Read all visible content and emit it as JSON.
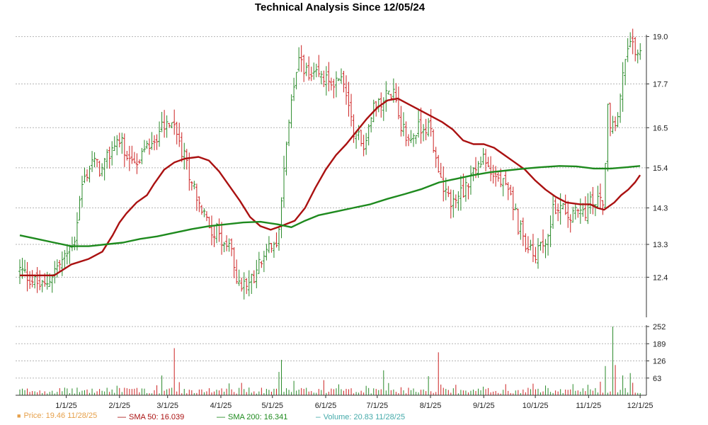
{
  "chart_data": {
    "type": "ohlc",
    "title": "Technical Analysis Since 12/05/24",
    "price_panel": {
      "y_ticks": [
        12.4,
        13.3,
        14.3,
        15.4,
        16.5,
        17.7,
        19.0
      ],
      "y_tick_labels": [
        "12.4",
        "13.3",
        "14.3",
        "15.4",
        "16.5",
        "17.7",
        "19.0"
      ],
      "ylim": [
        11.3,
        19.05
      ],
      "grid": true
    },
    "volume_panel": {
      "y_ticks": [
        63,
        126,
        189,
        252
      ],
      "y_tick_labels": [
        "63",
        "126",
        "189",
        "252"
      ],
      "ylim": [
        0,
        252
      ],
      "grid": true
    },
    "x_tick_labels": [
      "1/1/25",
      "2/1/25",
      "3/1/25",
      "4/1/25",
      "5/1/25",
      "6/1/25",
      "7/1/25",
      "8/1/25",
      "9/1/25",
      "10/1/25",
      "11/1/25",
      "12/1/25"
    ],
    "x_tick_days": [
      27,
      58,
      86,
      117,
      147,
      178,
      208,
      239,
      270,
      300,
      331,
      361
    ],
    "x_range_days": [
      0,
      363
    ],
    "price_keypoints": [
      [
        0,
        12.6
      ],
      [
        8,
        12.3
      ],
      [
        14,
        12.1
      ],
      [
        20,
        12.6
      ],
      [
        26,
        12.9
      ],
      [
        32,
        13.5
      ],
      [
        36,
        14.9
      ],
      [
        42,
        15.6
      ],
      [
        48,
        15.3
      ],
      [
        56,
        16.2
      ],
      [
        62,
        15.9
      ],
      [
        68,
        15.4
      ],
      [
        76,
        16.1
      ],
      [
        82,
        16.4
      ],
      [
        88,
        16.7
      ],
      [
        94,
        15.9
      ],
      [
        100,
        15.1
      ],
      [
        106,
        14.2
      ],
      [
        110,
        13.8
      ],
      [
        116,
        13.6
      ],
      [
        120,
        13.3
      ],
      [
        124,
        12.9
      ],
      [
        128,
        12.1
      ],
      [
        134,
        12.3
      ],
      [
        140,
        12.8
      ],
      [
        146,
        13.2
      ],
      [
        150,
        13.1
      ],
      [
        154,
        15.8
      ],
      [
        160,
        17.9
      ],
      [
        164,
        18.4
      ],
      [
        168,
        17.8
      ],
      [
        174,
        17.9
      ],
      [
        180,
        17.7
      ],
      [
        186,
        17.9
      ],
      [
        190,
        17.5
      ],
      [
        194,
        16.5
      ],
      [
        200,
        16.0
      ],
      [
        206,
        17.0
      ],
      [
        212,
        17.4
      ],
      [
        218,
        17.6
      ],
      [
        222,
        16.6
      ],
      [
        226,
        16.1
      ],
      [
        230,
        16.4
      ],
      [
        236,
        16.6
      ],
      [
        240,
        16.3
      ],
      [
        244,
        15.1
      ],
      [
        248,
        14.6
      ],
      [
        252,
        14.5
      ],
      [
        258,
        14.8
      ],
      [
        264,
        15.3
      ],
      [
        270,
        15.6
      ],
      [
        274,
        15.3
      ],
      [
        280,
        15.0
      ],
      [
        286,
        14.6
      ],
      [
        290,
        13.8
      ],
      [
        294,
        13.4
      ],
      [
        298,
        13.0
      ],
      [
        302,
        13.1
      ],
      [
        306,
        13.4
      ],
      [
        310,
        14.2
      ],
      [
        316,
        14.4
      ],
      [
        322,
        14.1
      ],
      [
        328,
        14.2
      ],
      [
        334,
        14.5
      ],
      [
        340,
        14.6
      ],
      [
        342,
        17.0
      ],
      [
        346,
        16.3
      ],
      [
        350,
        17.6
      ],
      [
        354,
        18.7
      ],
      [
        358,
        18.6
      ],
      [
        362,
        18.5
      ]
    ],
    "series": [
      {
        "name": "Price",
        "legend_text": "Price: 19.46  11/28/25",
        "color": "#e6a04a",
        "up_color": "#2a8a2a",
        "down_color": "#cc2222"
      },
      {
        "name": "SMA 50",
        "legend_text": "SMA 50: 16.039",
        "color": "#aa1111",
        "points": [
          [
            0,
            12.45
          ],
          [
            20,
            12.45
          ],
          [
            30,
            12.75
          ],
          [
            40,
            12.9
          ],
          [
            48,
            13.1
          ],
          [
            54,
            13.55
          ],
          [
            58,
            13.9
          ],
          [
            62,
            14.15
          ],
          [
            68,
            14.45
          ],
          [
            74,
            14.65
          ],
          [
            78,
            14.95
          ],
          [
            84,
            15.35
          ],
          [
            90,
            15.55
          ],
          [
            96,
            15.65
          ],
          [
            104,
            15.7
          ],
          [
            110,
            15.6
          ],
          [
            116,
            15.3
          ],
          [
            122,
            14.9
          ],
          [
            128,
            14.5
          ],
          [
            134,
            14.05
          ],
          [
            140,
            13.8
          ],
          [
            146,
            13.7
          ],
          [
            152,
            13.8
          ],
          [
            160,
            13.95
          ],
          [
            166,
            14.3
          ],
          [
            172,
            14.85
          ],
          [
            178,
            15.35
          ],
          [
            184,
            15.75
          ],
          [
            190,
            16.05
          ],
          [
            196,
            16.4
          ],
          [
            202,
            16.75
          ],
          [
            208,
            17.05
          ],
          [
            214,
            17.25
          ],
          [
            220,
            17.3
          ],
          [
            226,
            17.15
          ],
          [
            234,
            16.95
          ],
          [
            240,
            16.8
          ],
          [
            246,
            16.65
          ],
          [
            252,
            16.45
          ],
          [
            258,
            16.15
          ],
          [
            264,
            16.05
          ],
          [
            270,
            16.05
          ],
          [
            276,
            15.95
          ],
          [
            282,
            15.75
          ],
          [
            288,
            15.55
          ],
          [
            294,
            15.35
          ],
          [
            300,
            15.05
          ],
          [
            306,
            14.8
          ],
          [
            312,
            14.6
          ],
          [
            318,
            14.45
          ],
          [
            326,
            14.4
          ],
          [
            332,
            14.4
          ],
          [
            336,
            14.3
          ],
          [
            340,
            14.25
          ],
          [
            346,
            14.45
          ],
          [
            350,
            14.65
          ],
          [
            354,
            14.8
          ],
          [
            358,
            15.0
          ],
          [
            361,
            15.2
          ]
        ]
      },
      {
        "name": "SMA 200",
        "legend_text": "SMA 200: 16.341",
        "color": "#1e8a1e",
        "points": [
          [
            0,
            13.55
          ],
          [
            10,
            13.45
          ],
          [
            20,
            13.35
          ],
          [
            30,
            13.25
          ],
          [
            40,
            13.25
          ],
          [
            50,
            13.3
          ],
          [
            60,
            13.35
          ],
          [
            70,
            13.45
          ],
          [
            80,
            13.52
          ],
          [
            90,
            13.62
          ],
          [
            100,
            13.72
          ],
          [
            110,
            13.8
          ],
          [
            120,
            13.85
          ],
          [
            130,
            13.9
          ],
          [
            140,
            13.92
          ],
          [
            150,
            13.85
          ],
          [
            158,
            13.77
          ],
          [
            166,
            13.95
          ],
          [
            174,
            14.1
          ],
          [
            184,
            14.2
          ],
          [
            194,
            14.3
          ],
          [
            204,
            14.4
          ],
          [
            214,
            14.55
          ],
          [
            224,
            14.68
          ],
          [
            234,
            14.82
          ],
          [
            244,
            15.0
          ],
          [
            254,
            15.1
          ],
          [
            264,
            15.2
          ],
          [
            274,
            15.28
          ],
          [
            284,
            15.33
          ],
          [
            294,
            15.38
          ],
          [
            304,
            15.42
          ],
          [
            314,
            15.45
          ],
          [
            324,
            15.44
          ],
          [
            334,
            15.38
          ],
          [
            344,
            15.38
          ],
          [
            354,
            15.42
          ],
          [
            361,
            15.45
          ]
        ]
      },
      {
        "name": "Volume",
        "legend_text": "Volume: 20.83  11/28/25",
        "color": "#44aaaa"
      }
    ],
    "volume_spikes": [
      [
        58,
        38
      ],
      [
        68,
        28
      ],
      [
        80,
        42
      ],
      [
        84,
        70
      ],
      [
        90,
        165
      ],
      [
        94,
        55
      ],
      [
        122,
        42
      ],
      [
        130,
        48
      ],
      [
        134,
        30
      ],
      [
        150,
        88
      ],
      [
        152,
        130
      ],
      [
        160,
        52
      ],
      [
        178,
        58
      ],
      [
        186,
        44
      ],
      [
        202,
        38
      ],
      [
        206,
        52
      ],
      [
        212,
        92
      ],
      [
        214,
        45
      ],
      [
        222,
        30
      ],
      [
        238,
        80
      ],
      [
        244,
        182
      ],
      [
        246,
        40
      ],
      [
        254,
        38
      ],
      [
        270,
        32
      ],
      [
        284,
        42
      ],
      [
        300,
        48
      ],
      [
        306,
        38
      ],
      [
        312,
        40
      ],
      [
        322,
        45
      ],
      [
        332,
        38
      ],
      [
        338,
        56
      ],
      [
        342,
        120
      ],
      [
        344,
        265
      ],
      [
        348,
        130
      ],
      [
        350,
        80
      ],
      [
        354,
        90
      ],
      [
        358,
        50
      ]
    ]
  }
}
